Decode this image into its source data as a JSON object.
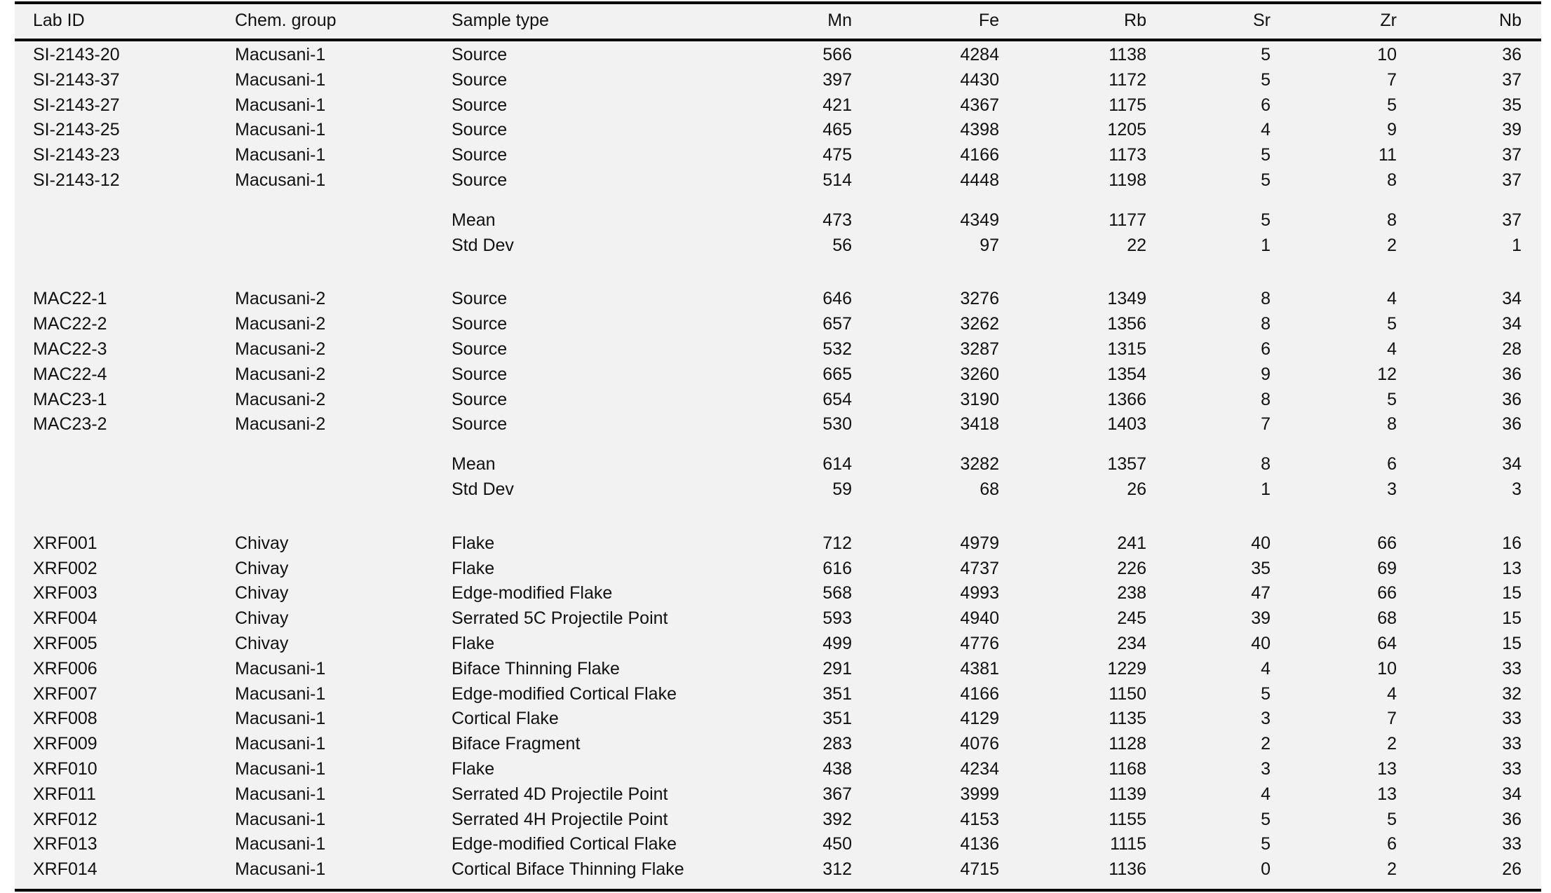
{
  "columns": [
    "Lab ID",
    "Chem. group",
    "Sample type",
    "Mn",
    "Fe",
    "Rb",
    "Sr",
    "Zr",
    "Nb"
  ],
  "groups": [
    {
      "rows": [
        [
          "SI-2143-20",
          "Macusani-1",
          "Source",
          "566",
          "4284",
          "1138",
          "5",
          "10",
          "36"
        ],
        [
          "SI-2143-37",
          "Macusani-1",
          "Source",
          "397",
          "4430",
          "1172",
          "5",
          "7",
          "37"
        ],
        [
          "SI-2143-27",
          "Macusani-1",
          "Source",
          "421",
          "4367",
          "1175",
          "6",
          "5",
          "35"
        ],
        [
          "SI-2143-25",
          "Macusani-1",
          "Source",
          "465",
          "4398",
          "1205",
          "4",
          "9",
          "39"
        ],
        [
          "SI-2143-23",
          "Macusani-1",
          "Source",
          "475",
          "4166",
          "1173",
          "5",
          "11",
          "37"
        ],
        [
          "SI-2143-12",
          "Macusani-1",
          "Source",
          "514",
          "4448",
          "1198",
          "5",
          "8",
          "37"
        ]
      ],
      "stats": [
        [
          "",
          "",
          "Mean",
          "473",
          "4349",
          "1177",
          "5",
          "8",
          "37"
        ],
        [
          "",
          "",
          "Std Dev",
          "56",
          "97",
          "22",
          "1",
          "2",
          "1"
        ]
      ]
    },
    {
      "rows": [
        [
          "MAC22-1",
          "Macusani-2",
          "Source",
          "646",
          "3276",
          "1349",
          "8",
          "4",
          "34"
        ],
        [
          "MAC22-2",
          "Macusani-2",
          "Source",
          "657",
          "3262",
          "1356",
          "8",
          "5",
          "34"
        ],
        [
          "MAC22-3",
          "Macusani-2",
          "Source",
          "532",
          "3287",
          "1315",
          "6",
          "4",
          "28"
        ],
        [
          "MAC22-4",
          "Macusani-2",
          "Source",
          "665",
          "3260",
          "1354",
          "9",
          "12",
          "36"
        ],
        [
          "MAC23-1",
          "Macusani-2",
          "Source",
          "654",
          "3190",
          "1366",
          "8",
          "5",
          "36"
        ],
        [
          "MAC23-2",
          "Macusani-2",
          "Source",
          "530",
          "3418",
          "1403",
          "7",
          "8",
          "36"
        ]
      ],
      "stats": [
        [
          "",
          "",
          "Mean",
          "614",
          "3282",
          "1357",
          "8",
          "6",
          "34"
        ],
        [
          "",
          "",
          "Std Dev",
          "59",
          "68",
          "26",
          "1",
          "3",
          "3"
        ]
      ]
    },
    {
      "rows": [
        [
          "XRF001",
          "Chivay",
          "Flake",
          "712",
          "4979",
          "241",
          "40",
          "66",
          "16"
        ],
        [
          "XRF002",
          "Chivay",
          "Flake",
          "616",
          "4737",
          "226",
          "35",
          "69",
          "13"
        ],
        [
          "XRF003",
          "Chivay",
          "Edge-modified Flake",
          "568",
          "4993",
          "238",
          "47",
          "66",
          "15"
        ],
        [
          "XRF004",
          "Chivay",
          "Serrated 5C Projectile Point",
          "593",
          "4940",
          "245",
          "39",
          "68",
          "15"
        ],
        [
          "XRF005",
          "Chivay",
          "Flake",
          "499",
          "4776",
          "234",
          "40",
          "64",
          "15"
        ],
        [
          "XRF006",
          "Macusani-1",
          "Biface Thinning Flake",
          "291",
          "4381",
          "1229",
          "4",
          "10",
          "33"
        ],
        [
          "XRF007",
          "Macusani-1",
          "Edge-modified Cortical Flake",
          "351",
          "4166",
          "1150",
          "5",
          "4",
          "32"
        ],
        [
          "XRF008",
          "Macusani-1",
          "Cortical Flake",
          "351",
          "4129",
          "1135",
          "3",
          "7",
          "33"
        ],
        [
          "XRF009",
          "Macusani-1",
          "Biface Fragment",
          "283",
          "4076",
          "1128",
          "2",
          "2",
          "33"
        ],
        [
          "XRF010",
          "Macusani-1",
          "Flake",
          "438",
          "4234",
          "1168",
          "3",
          "13",
          "33"
        ],
        [
          "XRF011",
          "Macusani-1",
          "Serrated 4D Projectile Point",
          "367",
          "3999",
          "1139",
          "4",
          "13",
          "34"
        ],
        [
          "XRF012",
          "Macusani-1",
          "Serrated 4H Projectile Point",
          "392",
          "4153",
          "1155",
          "5",
          "5",
          "36"
        ],
        [
          "XRF013",
          "Macusani-1",
          "Edge-modified Cortical Flake",
          "450",
          "4136",
          "1115",
          "5",
          "6",
          "33"
        ],
        [
          "XRF014",
          "Macusani-1",
          "Cortical Biface Thinning Flake",
          "312",
          "4715",
          "1136",
          "0",
          "2",
          "26"
        ]
      ],
      "stats": []
    }
  ]
}
